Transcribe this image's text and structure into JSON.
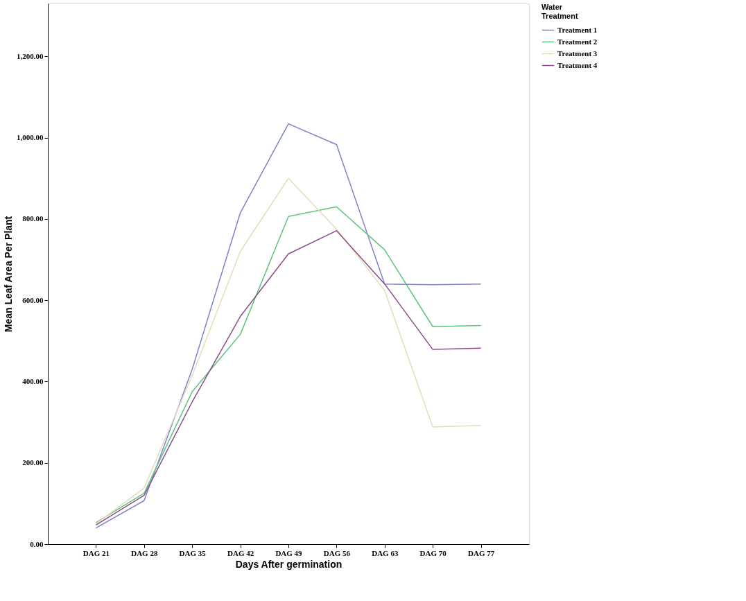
{
  "chart_data": {
    "type": "line",
    "xlabel": "Days After germination",
    "ylabel": "Mean Leaf Area Per Plant",
    "legend_title": "Water Treatment",
    "categories": [
      "DAG 21",
      "DAG 28",
      "DAG 35",
      "DAG 42",
      "DAG 49",
      "DAG 56",
      "DAG 63",
      "DAG 70",
      "DAG 77"
    ],
    "series": [
      {
        "name": "Treatment 1",
        "color": "#7b83c9",
        "values": [
          40,
          107,
          430,
          815,
          1034,
          983,
          640,
          638,
          640
        ]
      },
      {
        "name": "Treatment 2",
        "color": "#5dc479",
        "values": [
          53,
          125,
          375,
          516,
          806,
          830,
          724,
          535,
          538
        ]
      },
      {
        "name": "Treatment 3",
        "color": "#e0dfb8",
        "values": [
          50,
          138,
          415,
          720,
          900,
          775,
          624,
          288,
          292
        ]
      },
      {
        "name": "Treatment 4",
        "color": "#8e4a8e",
        "values": [
          47,
          120,
          350,
          560,
          714,
          771,
          640,
          479,
          482
        ]
      }
    ],
    "ylim": [
      0,
      1330
    ],
    "yticks": [
      {
        "value": 0,
        "label": "0.00"
      },
      {
        "value": 200,
        "label": "200.00"
      },
      {
        "value": 400,
        "label": "400.00"
      },
      {
        "value": 600,
        "label": "600.00"
      },
      {
        "value": 800,
        "label": "800.00"
      },
      {
        "value": 1000,
        "label": "1,000.00"
      },
      {
        "value": 1200,
        "label": "1,200.00"
      }
    ],
    "grid": false,
    "legend": "top right",
    "marker": "none",
    "line_style": "solid"
  }
}
